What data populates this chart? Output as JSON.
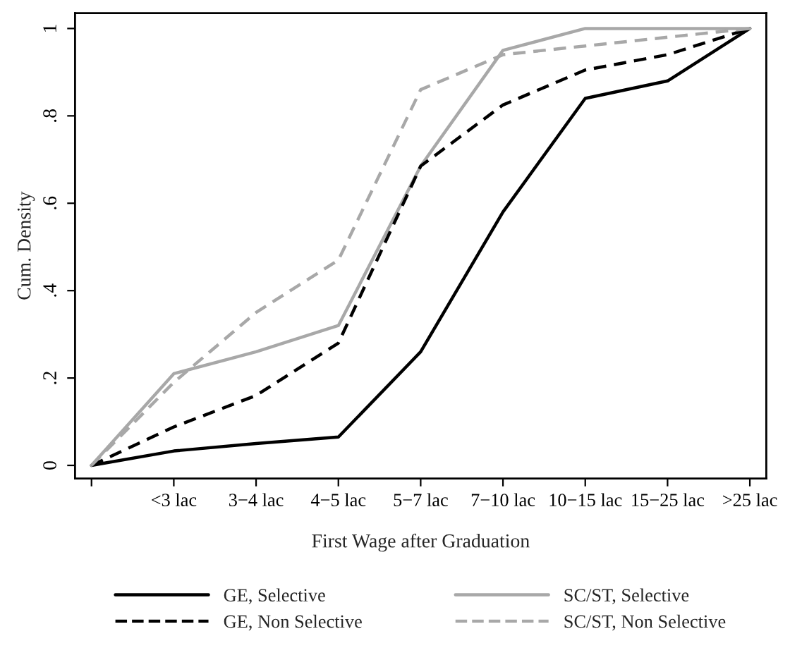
{
  "chart_data": {
    "type": "line",
    "xlabel": "First Wage after Graduation",
    "ylabel": "Cum. Density",
    "categories": [
      null,
      "<3 lac",
      "3−4 lac",
      "4−5 lac",
      "5−7 lac",
      "7−10 lac",
      "10−15 lac",
      "15−25 lac",
      ">25 lac"
    ],
    "series": [
      {
        "name": "GE, Selective",
        "color": "#000000",
        "line_style": "solid",
        "values": [
          0,
          0.033,
          0.05,
          0.065,
          0.26,
          0.58,
          0.84,
          0.88,
          1
        ]
      },
      {
        "name": "SC/ST, Selective",
        "color": "#a8a8a8",
        "line_style": "solid",
        "values": [
          0,
          0.21,
          0.26,
          0.32,
          0.685,
          0.95,
          1,
          1,
          1
        ]
      },
      {
        "name": "GE, Non Selective",
        "color": "#000000",
        "line_style": "dashed",
        "values": [
          0,
          0.088,
          0.16,
          0.28,
          0.685,
          0.825,
          0.905,
          0.94,
          1
        ]
      },
      {
        "name": "SC/ST, Non Selective",
        "color": "#a8a8a8",
        "line_style": "dashed",
        "values": [
          0,
          0.19,
          0.35,
          0.47,
          0.86,
          0.94,
          0.96,
          0.98,
          1
        ]
      }
    ],
    "ylim": [
      -0.03,
      1.035
    ],
    "yticks": [
      {
        "value": 0,
        "label": "0"
      },
      {
        "value": 0.2,
        "label": ".2"
      },
      {
        "value": 0.4,
        "label": ".4"
      },
      {
        "value": 0.6,
        "label": ".6"
      },
      {
        "value": 0.8,
        "label": ".8"
      },
      {
        "value": 1,
        "label": "1"
      }
    ],
    "grid": false,
    "legend": "bottom",
    "marker": "none"
  }
}
